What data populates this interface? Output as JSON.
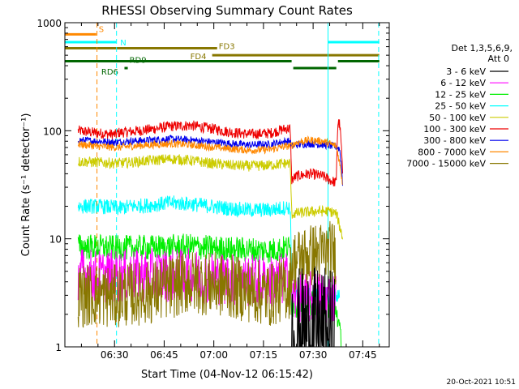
{
  "chart_data": {
    "type": "line",
    "title": "RHESSI Observing Summary Count Rates",
    "xlabel": "Start Time (04-Nov-12 06:15:42)",
    "ylabel": "Count Rate (s⁻¹ detector⁻¹)",
    "x_unit": "minutes after 06:15",
    "xlim": [
      0,
      98
    ],
    "ylim": [
      1,
      1000
    ],
    "yscale": "log",
    "x_tick_labels": [
      "06:30",
      "06:45",
      "07:00",
      "07:15",
      "07:30",
      "07:45"
    ],
    "x_ticks": [
      15,
      30,
      45,
      60,
      75,
      90
    ],
    "y_tick_labels": [
      "1",
      "10",
      "100",
      "1000"
    ],
    "y_ticks": [
      1,
      10,
      100,
      1000
    ],
    "timestamp": "20-Oct-2021 10:51",
    "legend": {
      "placement": "right",
      "header": [
        "Det 1,3,5,6,9,",
        "Att 0"
      ],
      "entries": [
        {
          "label": "3 - 6 keV",
          "color": "#000000"
        },
        {
          "label": "6 - 12 keV",
          "color": "#ff00ff"
        },
        {
          "label": "12 - 25 keV",
          "color": "#00ee00"
        },
        {
          "label": "25 - 50 keV",
          "color": "#00ffff"
        },
        {
          "label": "50 - 100 keV",
          "color": "#cccc00"
        },
        {
          "label": "100 - 300 keV",
          "color": "#ee0000"
        },
        {
          "label": "300 - 800 keV",
          "color": "#0000ee"
        },
        {
          "label": "800 - 7000 keV",
          "color": "#ff8800"
        },
        {
          "label": "7000 - 15000 keV",
          "color": "#887700"
        }
      ]
    },
    "flags": [
      {
        "label": "S",
        "color": "#ff8800",
        "y": 780,
        "segments": [
          [
            0,
            9.5
          ]
        ]
      },
      {
        "label": "N",
        "color": "#00ffff",
        "y": 660,
        "segments": [
          [
            0,
            15.5
          ],
          [
            79.5,
            95
          ]
        ]
      },
      {
        "label": "FD3",
        "color": "#887700",
        "y": 580,
        "segments": [
          [
            0,
            46
          ]
        ]
      },
      {
        "label": "FD4",
        "color": "#887700",
        "y": 500,
        "segments": [
          [
            44.5,
            95
          ]
        ]
      },
      {
        "label": "RD9",
        "color": "#006600",
        "y": 440,
        "segments": [
          [
            0,
            68.5
          ],
          [
            82.5,
            95
          ]
        ]
      },
      {
        "label": "RD6",
        "color": "#006600",
        "y": 380,
        "segments": [
          [
            18,
            19
          ],
          [
            69,
            82
          ]
        ]
      }
    ],
    "vlines": [
      {
        "x": 0,
        "color": "#00ffff",
        "style": "solid"
      },
      {
        "x": 9.7,
        "color": "#ff8800",
        "style": "dashed"
      },
      {
        "x": 15.6,
        "color": "#00ffff",
        "style": "dashed"
      },
      {
        "x": 79.5,
        "color": "#00ffff",
        "style": "solid"
      },
      {
        "x": 94.8,
        "color": "#00ffff",
        "style": "dashed"
      }
    ],
    "series": [
      {
        "name": "100 - 300 keV",
        "color": "#ee0000",
        "noise": 0.05,
        "x": [
          4,
          10,
          15.5,
          16,
          20,
          26,
          32,
          38,
          44,
          50,
          56,
          62,
          67,
          68,
          68.5,
          70,
          74,
          78,
          80,
          82,
          82.5,
          83,
          84
        ],
        "y": [
          100,
          95,
          92,
          96,
          98,
          103,
          110,
          112,
          105,
          97,
          93,
          95,
          105,
          105,
          35,
          38,
          40,
          38,
          35,
          33,
          120,
          115,
          30
        ]
      },
      {
        "name": "300 - 800 keV",
        "color": "#0000ee",
        "noise": 0.035,
        "x": [
          4,
          10,
          15.5,
          16,
          20,
          26,
          32,
          38,
          44,
          50,
          56,
          62,
          67,
          68,
          68.5,
          70,
          74,
          78,
          80,
          82,
          83,
          84
        ],
        "y": [
          82,
          80,
          78,
          79,
          80,
          82,
          84,
          82,
          79,
          76,
          74,
          75,
          80,
          80,
          72,
          74,
          76,
          74,
          73,
          71,
          68,
          30
        ]
      },
      {
        "name": "800 - 7000 keV",
        "color": "#ff8800",
        "noise": 0.035,
        "x": [
          4,
          10,
          15.5,
          16,
          20,
          26,
          32,
          38,
          44,
          50,
          56,
          62,
          67,
          68,
          68.5,
          70,
          74,
          78,
          80,
          82,
          83,
          84
        ],
        "y": [
          75,
          72,
          70,
          70,
          72,
          74,
          76,
          74,
          71,
          68,
          66,
          67,
          72,
          72,
          73,
          78,
          82,
          80,
          76,
          72,
          50,
          30
        ]
      },
      {
        "name": "50 - 100 keV",
        "color": "#cccc00",
        "noise": 0.05,
        "x": [
          4,
          10,
          15.5,
          16,
          20,
          26,
          32,
          38,
          44,
          50,
          56,
          62,
          67,
          68,
          68.5,
          72,
          76,
          80,
          82,
          83,
          84
        ],
        "y": [
          52,
          51,
          50,
          50,
          51,
          53,
          55,
          53,
          50,
          48,
          47,
          48,
          50,
          50,
          17,
          17.5,
          18,
          18,
          17,
          13,
          10
        ]
      },
      {
        "name": "25 - 50 keV",
        "color": "#00ffff",
        "noise": 0.07,
        "x": [
          4,
          10,
          15.5,
          16,
          20,
          26,
          32,
          38,
          44,
          50,
          56,
          62,
          67,
          68,
          68.5,
          76,
          80,
          82,
          83
        ],
        "y": [
          20,
          20,
          19.5,
          19,
          20,
          20.5,
          21.5,
          21,
          20,
          19,
          18.5,
          18.5,
          19.5,
          19.5,
          3,
          3,
          3,
          3,
          3
        ]
      },
      {
        "name": "12 - 25 keV",
        "color": "#00ee00",
        "noise": 0.12,
        "x": [
          4,
          10,
          15.5,
          16,
          26,
          38,
          50,
          62,
          67,
          68,
          68.5,
          72,
          76,
          80,
          82,
          83.5
        ],
        "y": [
          8.5,
          8.4,
          8.2,
          8.2,
          8.3,
          8.5,
          8.0,
          7.8,
          8.2,
          8.2,
          2.4,
          2.5,
          2.6,
          2.4,
          2.2,
          1.0
        ]
      },
      {
        "name": "6 - 12 keV",
        "color": "#ff00ff",
        "noise": 0.25,
        "x": [
          4,
          10,
          15.5,
          16,
          26,
          38,
          50,
          62,
          67,
          68,
          68.5,
          72,
          76,
          80,
          82
        ],
        "y": [
          4.8,
          4.5,
          4.5,
          4.5,
          4.6,
          4.6,
          4.2,
          4.0,
          4.3,
          4.3,
          2.8,
          2.8,
          2.9,
          2.8,
          2.8
        ]
      },
      {
        "name": "7000 - 15000 keV",
        "color": "#887700",
        "noise": 0.3,
        "x": [
          4,
          10,
          15.5,
          16,
          26,
          38,
          50,
          62,
          67,
          68,
          68.5,
          72,
          76,
          80,
          82
        ],
        "y": [
          3.0,
          3.0,
          2.9,
          3.0,
          3.2,
          4.0,
          3.6,
          3.0,
          3.5,
          3.5,
          6.0,
          6.8,
          7.2,
          7.5,
          7.5
        ]
      },
      {
        "name": "3 - 6 keV",
        "color": "#000000",
        "noise": 0.6,
        "x": [
          68.5,
          72,
          76,
          80,
          81.5
        ],
        "y": [
          1.35,
          1.4,
          1.4,
          1.35,
          1.3
        ]
      }
    ]
  }
}
